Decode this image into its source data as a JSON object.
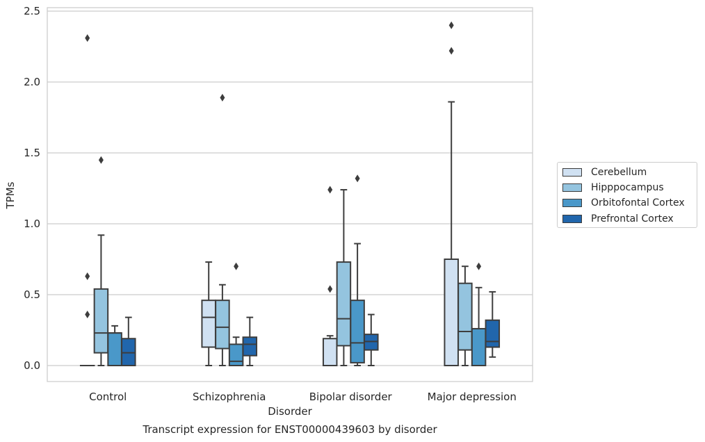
{
  "chart_data": {
    "type": "box",
    "title": "Transcript expression for ENST00000439603 by disorder",
    "xlabel": "Disorder",
    "ylabel": "TPMs",
    "ylim": [
      -0.12,
      2.53
    ],
    "yticks": [
      "0.0",
      "0.5",
      "1.0",
      "1.5",
      "2.0",
      "2.5"
    ],
    "ytick_values": [
      0,
      0.5,
      1.0,
      1.5,
      2.0,
      2.5
    ],
    "grid": true,
    "legend_position": "right",
    "categories": [
      "Control",
      "Schizophrenia",
      "Bipolar disorder",
      "Major depression"
    ],
    "series": [
      {
        "name": "Cerebellum",
        "color": "#d0e1f2",
        "boxes": [
          {
            "q1": 0,
            "median": 0,
            "q3": 0,
            "whisker_low": 0,
            "whisker_high": 0,
            "outliers": [
              0.36,
              0.63,
              2.31
            ]
          },
          {
            "q1": 0.13,
            "median": 0.34,
            "q3": 0.46,
            "whisker_low": 0,
            "whisker_high": 0.73,
            "outliers": []
          },
          {
            "q1": 0,
            "median": 0,
            "q3": 0.19,
            "whisker_low": 0,
            "whisker_high": 0.21,
            "outliers": [
              0.54,
              1.24
            ]
          },
          {
            "q1": 0,
            "median": 0,
            "q3": 0.75,
            "whisker_low": 0,
            "whisker_high": 1.86,
            "outliers": [
              2.22,
              2.4
            ]
          }
        ]
      },
      {
        "name": "Hipppocampus",
        "color": "#94c4df",
        "boxes": [
          {
            "q1": 0.09,
            "median": 0.23,
            "q3": 0.54,
            "whisker_low": 0,
            "whisker_high": 0.92,
            "outliers": [
              1.45
            ]
          },
          {
            "q1": 0.12,
            "median": 0.27,
            "q3": 0.46,
            "whisker_low": 0,
            "whisker_high": 0.57,
            "outliers": [
              1.89
            ]
          },
          {
            "q1": 0.14,
            "median": 0.33,
            "q3": 0.73,
            "whisker_low": 0,
            "whisker_high": 1.24,
            "outliers": []
          },
          {
            "q1": 0.11,
            "median": 0.24,
            "q3": 0.58,
            "whisker_low": 0,
            "whisker_high": 0.7,
            "outliers": []
          }
        ]
      },
      {
        "name": "Orbitofontal Cortex",
        "color": "#4a98c9",
        "boxes": [
          {
            "q1": 0,
            "median": 0.23,
            "q3": 0.23,
            "whisker_low": 0,
            "whisker_high": 0.28,
            "outliers": []
          },
          {
            "q1": 0,
            "median": 0.03,
            "q3": 0.15,
            "whisker_low": 0,
            "whisker_high": 0.2,
            "outliers": [
              0.7
            ]
          },
          {
            "q1": 0.02,
            "median": 0.16,
            "q3": 0.46,
            "whisker_low": 0,
            "whisker_high": 0.86,
            "outliers": [
              1.32
            ]
          },
          {
            "q1": 0,
            "median": 0.26,
            "q3": 0.26,
            "whisker_low": 0,
            "whisker_high": 0.55,
            "outliers": [
              0.7
            ]
          }
        ]
      },
      {
        "name": "Prefrontal Cortex",
        "color": "#2166ac",
        "boxes": [
          {
            "q1": 0,
            "median": 0.09,
            "q3": 0.19,
            "whisker_low": 0,
            "whisker_high": 0.34,
            "outliers": []
          },
          {
            "q1": 0.07,
            "median": 0.15,
            "q3": 0.2,
            "whisker_low": 0,
            "whisker_high": 0.34,
            "outliers": []
          },
          {
            "q1": 0.11,
            "median": 0.17,
            "q3": 0.22,
            "whisker_low": 0,
            "whisker_high": 0.36,
            "outliers": []
          },
          {
            "q1": 0.13,
            "median": 0.17,
            "q3": 0.32,
            "whisker_low": 0.06,
            "whisker_high": 0.52,
            "outliers": []
          }
        ]
      }
    ]
  }
}
